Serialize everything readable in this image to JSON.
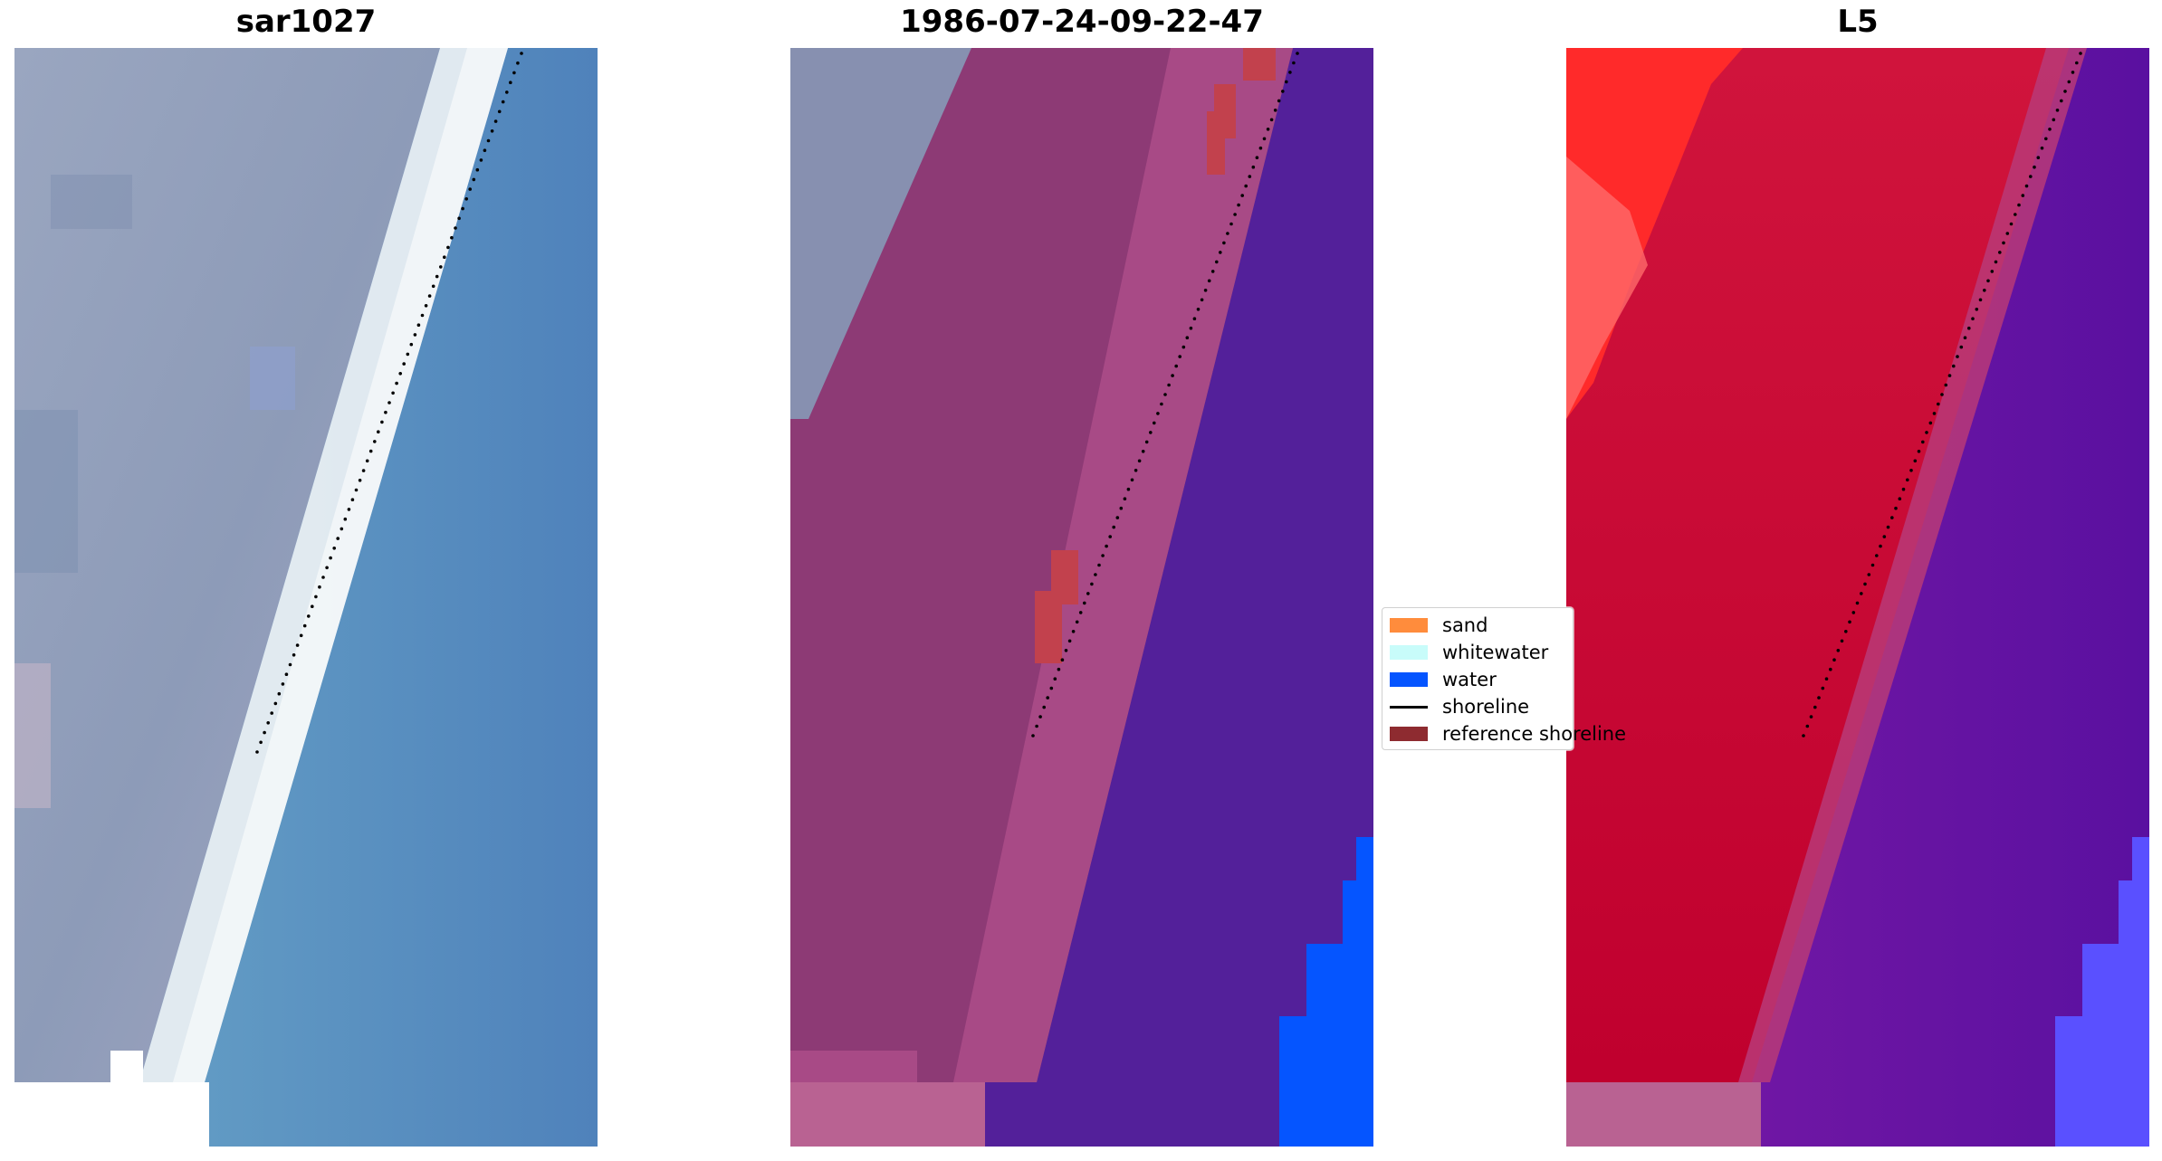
{
  "panels": [
    {
      "title": "sar1027"
    },
    {
      "title": "1986-07-24-09-22-47"
    },
    {
      "title": "L5"
    }
  ],
  "legend": {
    "items": [
      {
        "label": "sand",
        "color": "#ff8c3c",
        "kind": "patch"
      },
      {
        "label": "whitewater",
        "color": "#c8fcfa",
        "kind": "patch"
      },
      {
        "label": "water",
        "color": "#0555ff",
        "kind": "patch"
      },
      {
        "label": "shoreline",
        "color": "#000000",
        "kind": "line"
      },
      {
        "label": "reference shoreline",
        "color": "#8e2b30",
        "kind": "patch"
      }
    ]
  },
  "colors": {
    "rgb_land": "#97a3bd",
    "rgb_beach": "#eef4f6",
    "rgb_water": "#5b95c4",
    "class_land": "#8d3a75",
    "class_sand": "#c2414d",
    "class_water": "#53209a",
    "class_water_blue": "#0555ff",
    "class_nodata": "#b96292",
    "index_land": "#c8153c",
    "index_bright": "#ff1e1e",
    "index_water": "#6a12a0",
    "index_water_blue": "#5a50ff"
  }
}
